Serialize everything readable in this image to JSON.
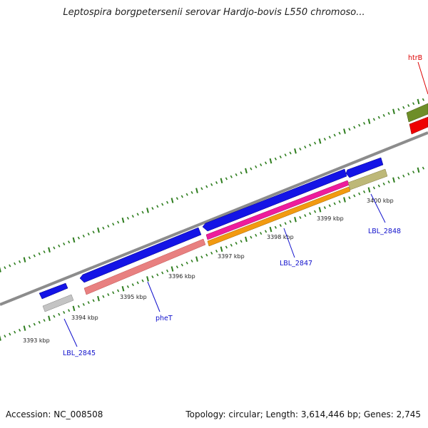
{
  "title": "Leptospira borgpetersenii serovar Hardjo-bovis L550 chromoso...",
  "footer": {
    "accession": "Accession: NC_008508",
    "topology": "Topology: circular; Length: 3,614,446 bp; Genes: 2,745"
  },
  "scale_labels": [
    "3393 kbp",
    "3394 kbp",
    "3395 kbp",
    "3396 kbp",
    "3397 kbp",
    "3398 kbp",
    "3399 kbp",
    "3400 kbp"
  ],
  "gene_labels": {
    "lbl2845": "LBL_2845",
    "phet": "pheT",
    "lbl2847": "LBL_2847",
    "lbl2848": "LBL_2848",
    "htrb": "htrB"
  },
  "colors": {
    "backbone": "#8c8c8c",
    "tick": "#2e7d1e",
    "cds_blue": "#1414e6",
    "pink": "#e88080",
    "gray": "#c4c4c4",
    "magenta": "#ee1c9c",
    "orange": "#f29a10",
    "khaki": "#bdb878",
    "olive": "#6e8e28",
    "red": "#ee0000",
    "label_blue": "#1010cc",
    "label_red": "#dd0000"
  }
}
